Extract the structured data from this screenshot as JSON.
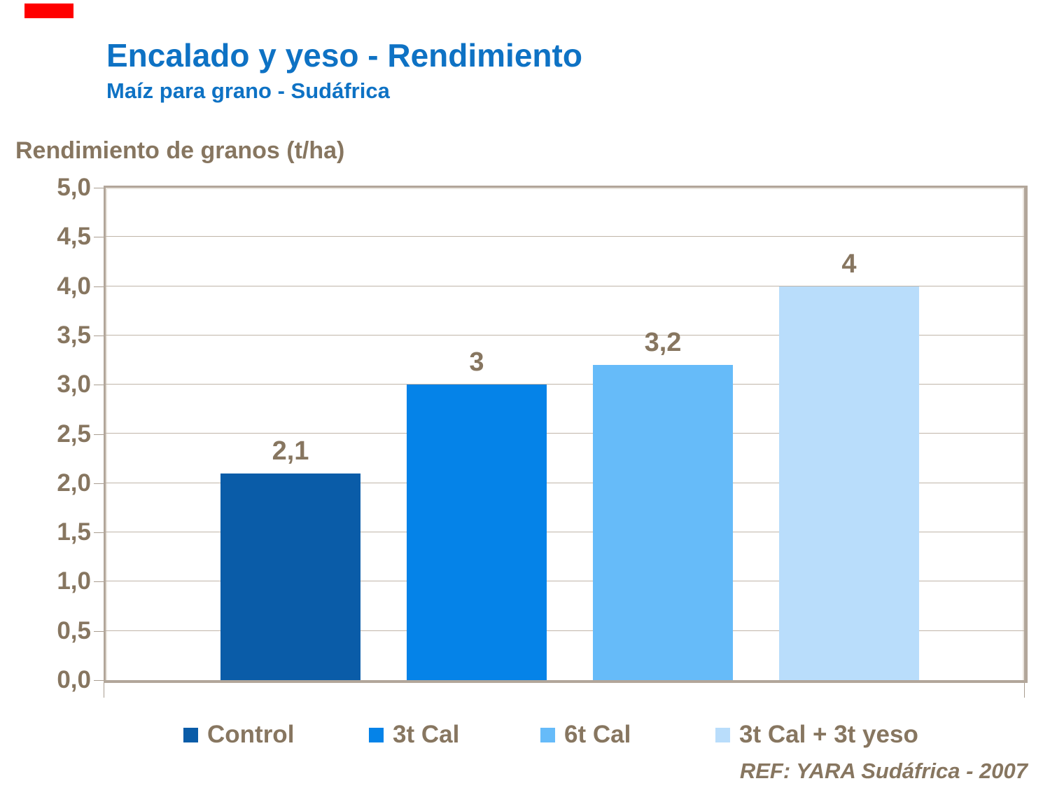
{
  "slide": {
    "title": "Encalado y yeso - Rendimiento",
    "subtitle": "Maíz para grano - Sudáfrica",
    "reference": "REF: YARA Sudáfrica - 2007",
    "accent_color": "#ff0000",
    "title_color": "#0e72c4",
    "text_color": "#877660",
    "frame_color": "#b2a69a"
  },
  "chart_data": {
    "type": "bar",
    "title": "Rendimiento de granos (t/ha)",
    "ylabel": "Rendimiento de granos (t/ha)",
    "xlabel": "",
    "categories": [
      "Control",
      "3t Cal",
      "6t Cal",
      "3t Cal + 3t yeso"
    ],
    "values": [
      2.1,
      3,
      3.2,
      4
    ],
    "value_labels": [
      "2,1",
      "3",
      "3,2",
      "4"
    ],
    "bar_colors": [
      "#0a5ca8",
      "#0583e8",
      "#66bbf9",
      "#b9ddfb"
    ],
    "ylim": [
      0,
      5
    ],
    "ytick_step": 0.5,
    "ytick_labels": [
      "0,0",
      "0,5",
      "1,0",
      "1,5",
      "2,0",
      "2,5",
      "3,0",
      "3,5",
      "4,0",
      "4,5",
      "5,0"
    ],
    "grid": true,
    "legend_position": "bottom"
  }
}
